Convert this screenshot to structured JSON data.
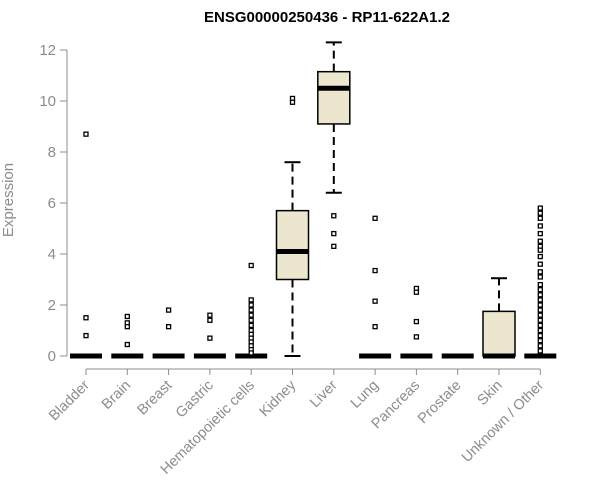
{
  "chart_data": {
    "type": "boxplot",
    "title": "ENSG00000250436 - RP11-622A1.2",
    "xlabel": "",
    "ylabel": "Expression",
    "ylim": [
      0,
      12.4
    ],
    "yticks": [
      0,
      2,
      4,
      6,
      8,
      10,
      12
    ],
    "grid": false,
    "legend": "none",
    "colors": {
      "box_fill": "#ede6ce",
      "box_stroke": "#000000",
      "axis": "#8c8c8c",
      "text": "#8c8c8c",
      "title": "#000000"
    },
    "categories": [
      "Bladder",
      "Brain",
      "Breast",
      "Gastric",
      "Hematopoietic cells",
      "Kidney",
      "Liver",
      "Lung",
      "Pancreas",
      "Prostate",
      "Skin",
      "Unknown / Other"
    ],
    "boxes": [
      {
        "category": "Bladder",
        "min": 0,
        "q1": 0,
        "median": 0,
        "q3": 0,
        "max": 0,
        "outliers": [
          8.7,
          1.5,
          0.8
        ]
      },
      {
        "category": "Brain",
        "min": 0,
        "q1": 0,
        "median": 0,
        "q3": 0,
        "max": 0,
        "outliers": [
          1.55,
          1.3,
          1.15,
          0.45
        ]
      },
      {
        "category": "Breast",
        "min": 0,
        "q1": 0,
        "median": 0,
        "q3": 0,
        "max": 0,
        "outliers": [
          1.8,
          1.15
        ]
      },
      {
        "category": "Gastric",
        "min": 0,
        "q1": 0,
        "median": 0,
        "q3": 0,
        "max": 0,
        "outliers": [
          1.6,
          1.4,
          0.7
        ]
      },
      {
        "category": "Hematopoietic cells",
        "min": 0,
        "q1": 0,
        "median": 0,
        "q3": 0,
        "max": 0,
        "outliers": [
          3.55,
          2.2,
          2.0,
          1.8,
          1.6,
          1.4,
          1.2,
          1.0,
          0.85,
          0.7,
          0.55,
          0.4,
          0.25,
          0.12
        ]
      },
      {
        "category": "Kidney",
        "min": 0,
        "q1": 3.0,
        "median": 4.1,
        "q3": 5.7,
        "max": 7.6,
        "outliers": [
          10.1,
          9.95
        ]
      },
      {
        "category": "Liver",
        "min": 6.4,
        "q1": 9.1,
        "median": 10.5,
        "q3": 11.15,
        "max": 12.3,
        "outliers": [
          5.5,
          4.8,
          4.3
        ]
      },
      {
        "category": "Lung",
        "min": 0,
        "q1": 0,
        "median": 0,
        "q3": 0,
        "max": 0,
        "outliers": [
          5.4,
          3.35,
          2.15,
          1.15
        ]
      },
      {
        "category": "Pancreas",
        "min": 0,
        "q1": 0,
        "median": 0,
        "q3": 0,
        "max": 0,
        "outliers": [
          2.65,
          2.5,
          1.35,
          0.75
        ]
      },
      {
        "category": "Prostate",
        "min": 0,
        "q1": 0,
        "median": 0,
        "q3": 0,
        "max": 0,
        "outliers": []
      },
      {
        "category": "Skin",
        "min": 0,
        "q1": 0,
        "median": 0,
        "q3": 1.75,
        "max": 3.05,
        "outliers": []
      },
      {
        "category": "Unknown / Other",
        "min": 0,
        "q1": 0,
        "median": 0,
        "q3": 0,
        "max": 0,
        "outliers": [
          5.8,
          5.6,
          5.4,
          5.1,
          4.8,
          4.5,
          4.3,
          4.15,
          3.9,
          3.6,
          3.3,
          3.1,
          2.8,
          2.6,
          2.4,
          2.2,
          2.0,
          1.8,
          1.6,
          1.4,
          1.2,
          1.0,
          0.8,
          0.6,
          0.4,
          0.2
        ]
      }
    ]
  }
}
